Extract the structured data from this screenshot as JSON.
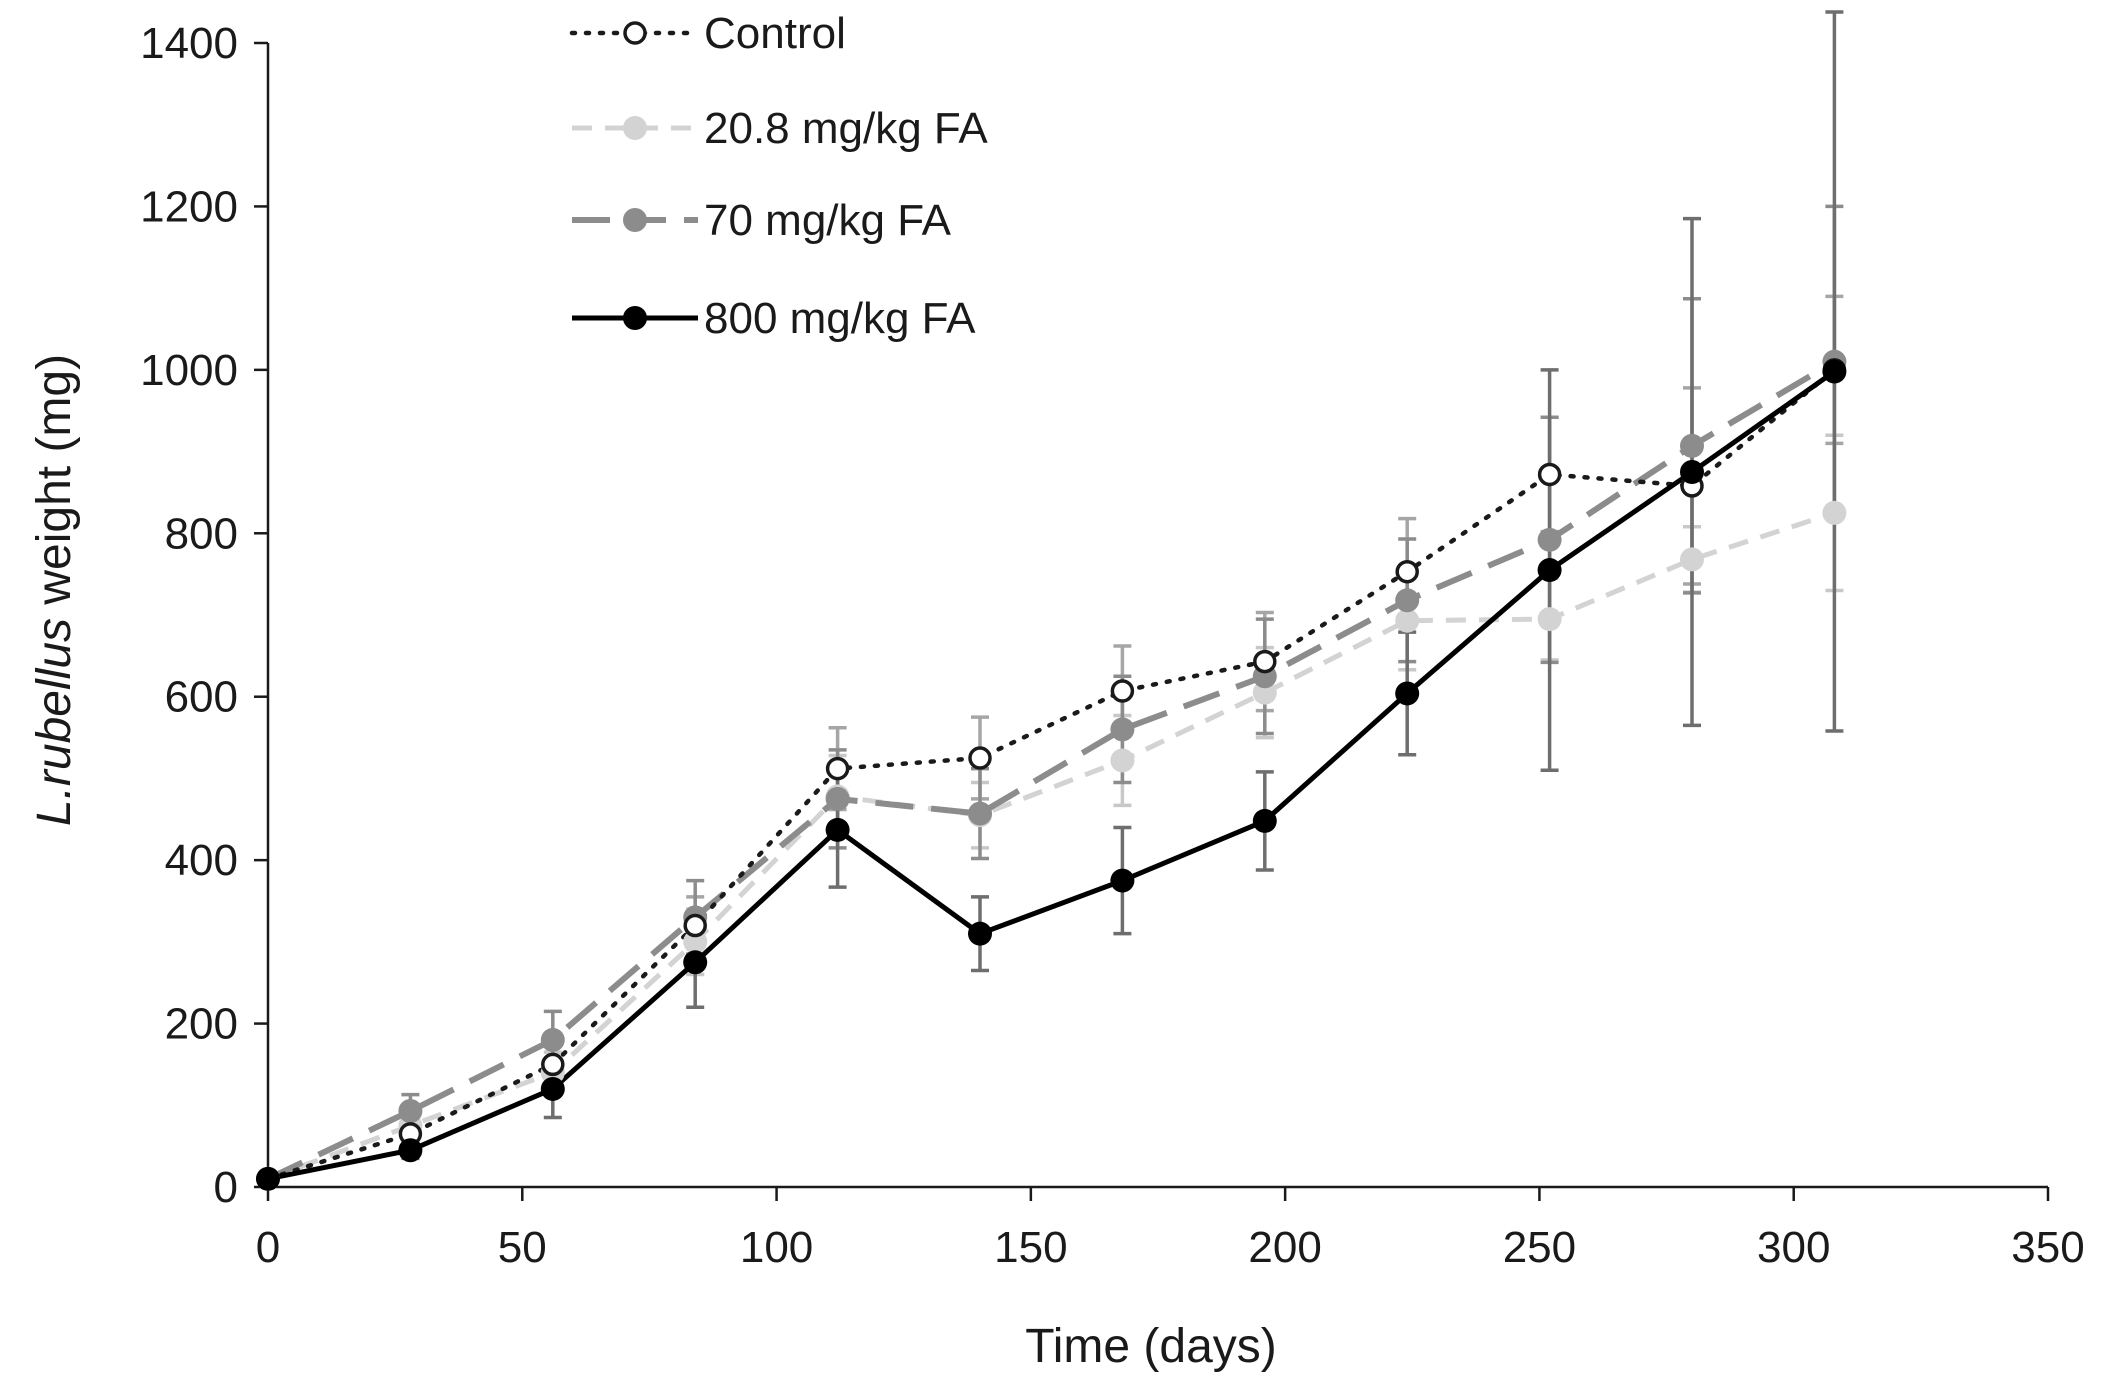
{
  "chart_data": {
    "type": "line",
    "xlabel": "Time (days)",
    "ylabel_italic": "L.rubellus",
    "ylabel_rest": " weight (mg)",
    "xlim": [
      0,
      350
    ],
    "ylim": [
      0,
      1400
    ],
    "xticks": [
      0,
      50,
      100,
      150,
      200,
      250,
      300,
      350
    ],
    "yticks": [
      0,
      200,
      400,
      600,
      800,
      1000,
      1200,
      1400
    ],
    "grid": false,
    "legend_position": "top-left",
    "series": [
      {
        "name": "Control",
        "color": "#1a1a1a",
        "style": "dotted",
        "marker": "open-circle",
        "errcolor": "#a6a6a6",
        "x": [
          0,
          28,
          56,
          84,
          112,
          140,
          168,
          196,
          224,
          252,
          280,
          308
        ],
        "y": [
          10,
          65,
          150,
          320,
          512,
          525,
          607,
          643,
          753,
          872,
          858,
          1000
        ],
        "err": [
          5,
          15,
          25,
          35,
          50,
          50,
          55,
          60,
          65,
          70,
          120,
          90
        ]
      },
      {
        "name": "20.8 mg/kg FA",
        "color": "#d3d3d3",
        "style": "dashed",
        "marker": "filled-circle",
        "errcolor": "#c8c8c8",
        "x": [
          0,
          28,
          56,
          84,
          112,
          140,
          168,
          196,
          224,
          252,
          280,
          308
        ],
        "y": [
          10,
          75,
          140,
          300,
          478,
          455,
          522,
          605,
          693,
          695,
          768,
          825
        ],
        "err": [
          5,
          15,
          25,
          40,
          50,
          40,
          55,
          55,
          60,
          50,
          40,
          95
        ]
      },
      {
        "name": "70 mg/kg FA",
        "color": "#8c8c8c",
        "style": "longdash",
        "marker": "filled-circle",
        "errcolor": "#8c8c8c",
        "x": [
          0,
          28,
          56,
          84,
          112,
          140,
          168,
          196,
          224,
          252,
          280,
          308
        ],
        "y": [
          10,
          93,
          180,
          330,
          475,
          457,
          560,
          625,
          718,
          792,
          907,
          1010
        ],
        "err": [
          5,
          20,
          35,
          45,
          60,
          55,
          65,
          70,
          75,
          150,
          180,
          190
        ]
      },
      {
        "name": "800 mg/kg FA",
        "color": "#000000",
        "style": "solid",
        "marker": "filled-circle",
        "errcolor": "#6e6e6e",
        "x": [
          0,
          28,
          56,
          84,
          112,
          140,
          168,
          196,
          224,
          252,
          280,
          308
        ],
        "y": [
          10,
          45,
          120,
          275,
          437,
          310,
          375,
          448,
          604,
          755,
          875,
          998
        ],
        "err": [
          5,
          10,
          35,
          55,
          70,
          45,
          65,
          60,
          75,
          245,
          310,
          440
        ]
      }
    ]
  }
}
